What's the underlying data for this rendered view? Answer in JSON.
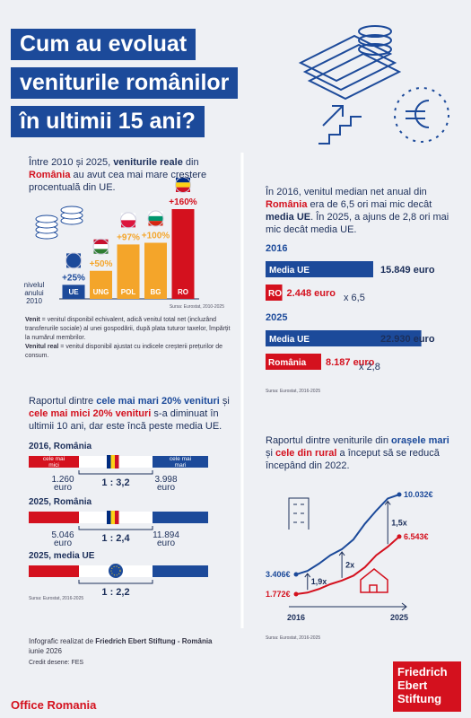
{
  "header": {
    "title_lines": [
      "Cum au evoluat",
      "veniturile românilor",
      "în ultimii 15 ani?"
    ]
  },
  "growth": {
    "text": [
      "Între 2010 și 2025, ",
      "veniturile reale",
      " din ",
      "România",
      " au avut cea mai mare creștere procentuală din UE."
    ],
    "baseline_label": [
      "nivelul",
      "anului",
      "2010"
    ],
    "source": "Sursa: Eurostat, 2010-2025",
    "definitions": [
      [
        "Venit",
        " = venitul disponibil echivalent, adică venitul total net (incluzând transferurile sociale) al unei gospodării, după plata tuturor taxelor, împărțit la numărul membrilor."
      ],
      [
        "Venitul real",
        " = venitul disponibil ajustat cu indicele creșterii prețurilor de consum."
      ]
    ]
  },
  "chart_data": [
    {
      "type": "bar",
      "categories": [
        "UE",
        "UNG",
        "POL",
        "BG",
        "RO"
      ],
      "values": [
        25,
        50,
        97,
        100,
        160
      ],
      "value_labels": [
        "+25%",
        "+50%",
        "+97%",
        "+100%",
        "+160%"
      ],
      "colors": [
        "#1c4a9a",
        "#f4a52a",
        "#f4a52a",
        "#f4a52a",
        "#d4111e"
      ]
    },
    {
      "type": "line",
      "x": [
        2016,
        2017,
        2018,
        2019,
        2020,
        2021,
        2022,
        2023,
        2024,
        2025
      ],
      "xticks": [
        2016,
        2025
      ],
      "series": [
        {
          "color": "#1c4a9a",
          "values": [
            3406,
            3700,
            4300,
            5000,
            5500,
            6300,
            7600,
            8700,
            9700,
            10032
          ],
          "value_labels": [
            "3.406€",
            null,
            null,
            null,
            null,
            null,
            null,
            null,
            null,
            "10.032€"
          ]
        },
        {
          "color": "#d4111e",
          "values": [
            1772,
            1900,
            2200,
            2600,
            2900,
            3300,
            4000,
            5000,
            5700,
            6543
          ],
          "value_labels": [
            "1.772€",
            null,
            null,
            null,
            null,
            null,
            null,
            null,
            null,
            "6.543€"
          ]
        }
      ],
      "annotations": [
        "1,9x",
        "2x",
        "1,5x"
      ]
    }
  ],
  "median": {
    "text": [
      "În 2016, venitul median net anual din ",
      "România",
      " era de 6,5 ori mai mic decât ",
      "media UE",
      ". În 2025, a ajuns de 2,8 ori mai mic decât media UE."
    ],
    "blocks": [
      {
        "year": "2016",
        "eu_label": "Media UE",
        "eu_value": 15849,
        "eu_value_label": "15.849 euro",
        "ro_label": "RO",
        "ro_value": 2448,
        "ro_value_label": "2.448 euro",
        "multiplier": "x 6,5"
      },
      {
        "year": "2025",
        "eu_label": "Media UE",
        "eu_value": 22930,
        "eu_value_label": "22.930 euro",
        "ro_label": "România",
        "ro_value": 8187,
        "ro_value_label": "8.187 euro",
        "multiplier": "x 2,8"
      }
    ],
    "source": "Sursa: Eurostat, 2016-2025"
  },
  "ratio": {
    "text": [
      "Raportul dintre ",
      "cele mai mari 20% venituri",
      " și ",
      "cele mai mici 20% venituri",
      " s-a diminuat în ultimii 10 ani, dar este încă peste media UE."
    ],
    "unit": "euro",
    "low_label": [
      "cele mai",
      "mici"
    ],
    "high_label": [
      "cele mai",
      "mari"
    ],
    "rows": [
      {
        "title": "2016, România",
        "low": "1.260",
        "high": "3.998",
        "ratio": "1 : 3,2"
      },
      {
        "title": "2025, România",
        "low": "5.046",
        "high": "11.894",
        "ratio": "1 : 2,4"
      },
      {
        "title": "2025, media UE",
        "ratio": "1 : 2,2"
      }
    ],
    "source": "Sursa: Eurostat, 2016-2025"
  },
  "urban_rural": {
    "text": [
      "Raportul dintre veniturile din ",
      "orașele mari",
      " și ",
      "cele din rural",
      " a început să se reducă începând din 2022."
    ],
    "source": "Sursa: Eurostat, 2016-2025"
  },
  "footer": {
    "credit": [
      "Infografic realizat de ",
      "Friedrich Ebert Stiftung - România"
    ],
    "date": "iunie 2026",
    "drawings": "Credit desene: FES",
    "logo": [
      "Friedrich",
      "Ebert",
      "Stiftung"
    ],
    "office": "Office Romania"
  }
}
